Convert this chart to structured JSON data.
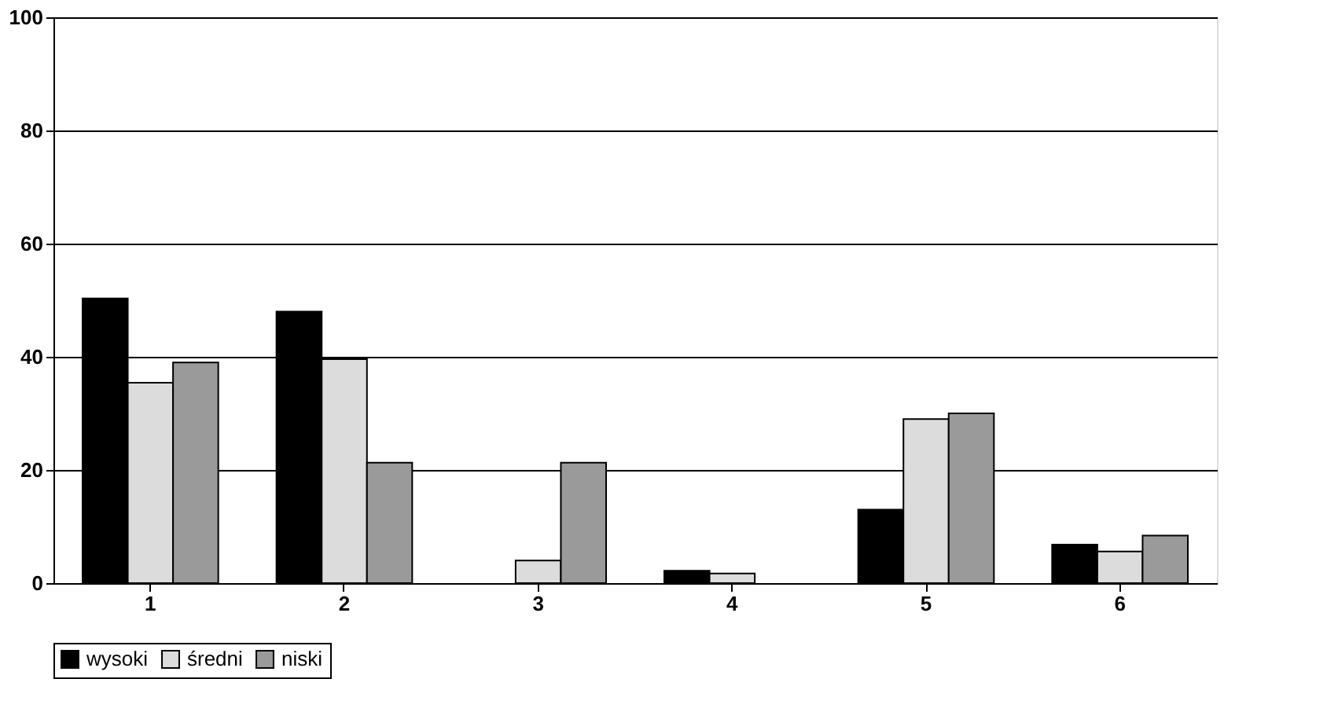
{
  "chart_data": {
    "type": "bar",
    "categories": [
      "1",
      "2",
      "3",
      "4",
      "5",
      "6"
    ],
    "series": [
      {
        "name": "wysoki",
        "color": "#000000",
        "values": [
          50.3,
          48,
          0,
          2.2,
          13,
          6.8
        ]
      },
      {
        "name": "średni",
        "color": "#dcdcdc",
        "values": [
          35.4,
          39.6,
          4,
          1.7,
          29,
          5.6
        ]
      },
      {
        "name": "niski",
        "color": "#9a9a9a",
        "values": [
          39,
          21.3,
          21.3,
          0,
          30,
          8.4
        ]
      }
    ],
    "ylim": [
      0,
      100
    ],
    "yticks": [
      0,
      20,
      40,
      60,
      80,
      100
    ],
    "grid": "y",
    "legend": "bottom"
  }
}
